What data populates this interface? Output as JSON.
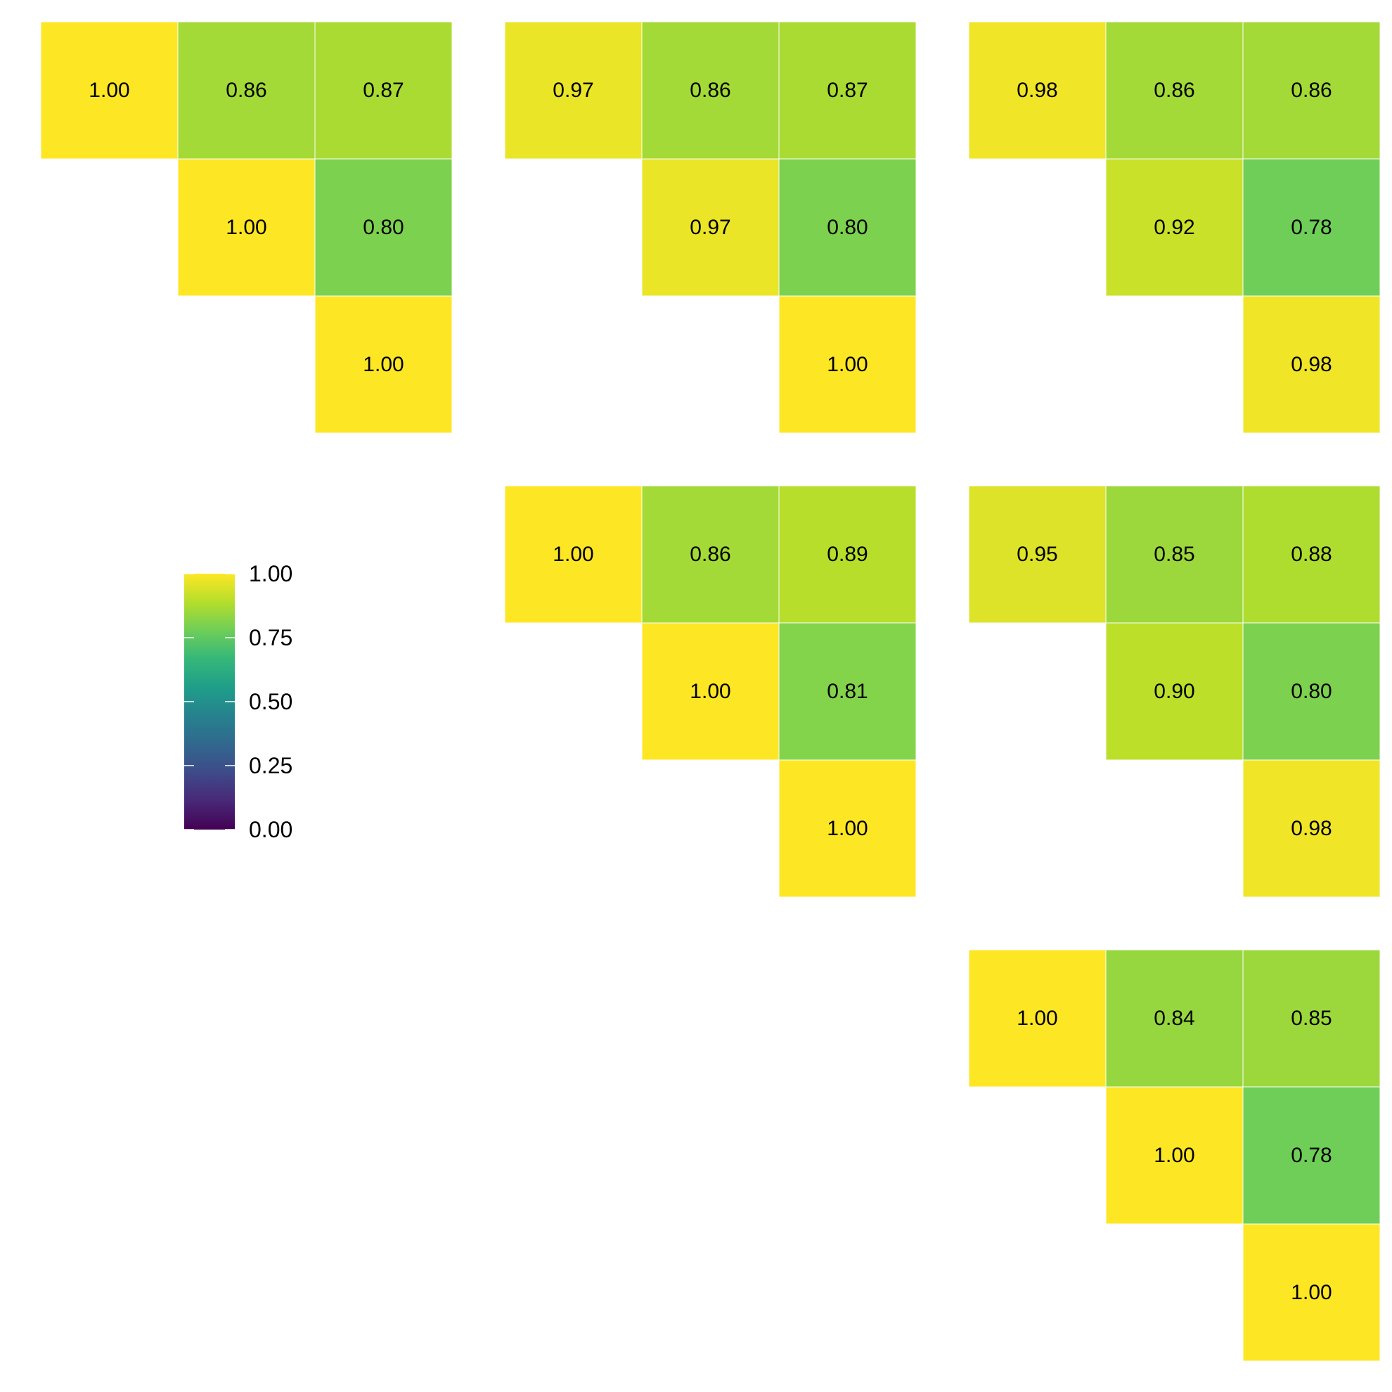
{
  "chart_data": {
    "type": "heatmap",
    "description": "Upper-triangular correlation heatmaps arranged in a 3x3 grid of panels (upper triangle only)",
    "color_scale": {
      "name": "viridis",
      "domain": [
        0,
        1
      ],
      "ticks": [
        "0.00",
        "0.25",
        "0.50",
        "0.75",
        "1.00"
      ],
      "stops": [
        "#440154",
        "#482878",
        "#3e4a89",
        "#31688e",
        "#26828e",
        "#1f9e89",
        "#35b779",
        "#6ece58",
        "#b5de2b",
        "#fde725"
      ]
    },
    "panels": [
      {
        "grid_row": 0,
        "grid_col": 0,
        "cells": [
          [
            1.0,
            0.86,
            0.87
          ],
          [
            null,
            1.0,
            0.8
          ],
          [
            null,
            null,
            1.0
          ]
        ]
      },
      {
        "grid_row": 0,
        "grid_col": 1,
        "cells": [
          [
            0.97,
            0.86,
            0.87
          ],
          [
            null,
            0.97,
            0.8
          ],
          [
            null,
            null,
            1.0
          ]
        ]
      },
      {
        "grid_row": 0,
        "grid_col": 2,
        "cells": [
          [
            0.98,
            0.86,
            0.86
          ],
          [
            null,
            0.92,
            0.78
          ],
          [
            null,
            null,
            0.98
          ]
        ]
      },
      {
        "grid_row": 1,
        "grid_col": 1,
        "cells": [
          [
            1.0,
            0.86,
            0.89
          ],
          [
            null,
            1.0,
            0.81
          ],
          [
            null,
            null,
            1.0
          ]
        ]
      },
      {
        "grid_row": 1,
        "grid_col": 2,
        "cells": [
          [
            0.95,
            0.85,
            0.88
          ],
          [
            null,
            0.9,
            0.8
          ],
          [
            null,
            null,
            0.98
          ]
        ]
      },
      {
        "grid_row": 2,
        "grid_col": 2,
        "cells": [
          [
            1.0,
            0.84,
            0.85
          ],
          [
            null,
            1.0,
            0.78
          ],
          [
            null,
            null,
            1.0
          ]
        ]
      }
    ],
    "legend": {
      "placement": "middle-left",
      "title": ""
    }
  }
}
